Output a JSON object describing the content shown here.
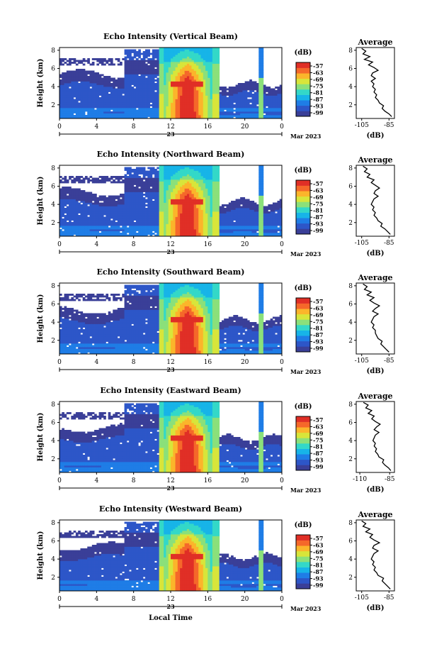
{
  "chart_data": [
    {
      "type": "heatmap",
      "title": "Echo Intensity (Vertical Beam)",
      "ylabel": "Height (km)",
      "yticks": [
        "2",
        "4",
        "6",
        "8"
      ],
      "ylim": [
        0.5,
        8.3
      ],
      "xticks": [
        "0",
        "4",
        "8",
        "12",
        "16",
        "20",
        "0"
      ],
      "xlim": [
        0,
        24
      ],
      "day_label": "23",
      "date_label": "Mar 2023",
      "colorbar": {
        "unit": "(dB)",
        "levels": [
          "-57",
          "-63",
          "-69",
          "-75",
          "-81",
          "-87",
          "-93",
          "-99"
        ]
      },
      "profile": {
        "title": "Average",
        "xlabel": "(dB)",
        "xticks": [
          "-105",
          "-85"
        ],
        "xlim": [
          -109,
          -81
        ],
        "yticks": [
          "2",
          "4",
          "6",
          "8"
        ],
        "ylim": [
          0.5,
          8.3
        ],
        "heights": [
          0.7,
          1.0,
          1.3,
          1.6,
          1.9,
          2.2,
          2.5,
          2.8,
          3.1,
          3.4,
          3.7,
          4.0,
          4.3,
          4.6,
          4.9,
          5.2,
          5.5,
          5.8,
          6.1,
          6.4,
          6.7,
          7.0,
          7.3,
          7.6,
          7.9,
          8.2
        ],
        "values": [
          -83,
          -85,
          -88,
          -90,
          -89,
          -92,
          -93,
          -95,
          -94,
          -96,
          -95,
          -97,
          -96,
          -98,
          -95,
          -98,
          -97,
          -93,
          -96,
          -100,
          -97,
          -103,
          -99,
          -104,
          -102,
          -105
        ]
      }
    },
    {
      "type": "heatmap",
      "title": "Echo Intensity (Northward Beam)",
      "ylabel": "Height (km)",
      "yticks": [
        "2",
        "4",
        "6",
        "8"
      ],
      "ylim": [
        0.5,
        8.3
      ],
      "xticks": [
        "0",
        "4",
        "8",
        "12",
        "16",
        "20",
        "0"
      ],
      "xlim": [
        0,
        24
      ],
      "day_label": "23",
      "date_label": "Mar 2023",
      "colorbar": {
        "unit": "(dB)",
        "levels": [
          "-57",
          "-63",
          "-69",
          "-75",
          "-81",
          "-87",
          "-93",
          "-99"
        ]
      },
      "profile": {
        "title": "Average",
        "xlabel": "(dB)",
        "xticks": [
          "-105",
          "-85"
        ],
        "xlim": [
          -109,
          -81
        ],
        "yticks": [
          "2",
          "4",
          "6",
          "8"
        ],
        "ylim": [
          0.5,
          8.3
        ],
        "heights": [
          0.7,
          1.0,
          1.3,
          1.6,
          1.9,
          2.2,
          2.5,
          2.8,
          3.1,
          3.4,
          3.7,
          4.0,
          4.3,
          4.6,
          4.9,
          5.2,
          5.5,
          5.8,
          6.1,
          6.4,
          6.7,
          7.0,
          7.3,
          7.6,
          7.9,
          8.2
        ],
        "values": [
          -84,
          -86,
          -88,
          -91,
          -90,
          -93,
          -94,
          -96,
          -95,
          -97,
          -96,
          -98,
          -97,
          -96,
          -93,
          -96,
          -95,
          -92,
          -95,
          -98,
          -96,
          -101,
          -99,
          -103,
          -101,
          -104
        ]
      }
    },
    {
      "type": "heatmap",
      "title": "Echo Intensity (Southward Beam)",
      "ylabel": "Height (km)",
      "yticks": [
        "2",
        "4",
        "6",
        "8"
      ],
      "ylim": [
        0.5,
        8.3
      ],
      "xticks": [
        "0",
        "4",
        "8",
        "12",
        "16",
        "20",
        "0"
      ],
      "xlim": [
        0,
        24
      ],
      "day_label": "23",
      "date_label": "Mar 2023",
      "colorbar": {
        "unit": "(dB)",
        "levels": [
          "-57",
          "-63",
          "-69",
          "-75",
          "-81",
          "-87",
          "-93",
          "-99"
        ]
      },
      "profile": {
        "title": "Average",
        "xlabel": "(dB)",
        "xticks": [
          "-105",
          "-85"
        ],
        "xlim": [
          -109,
          -81
        ],
        "yticks": [
          "2",
          "4",
          "6",
          "8"
        ],
        "ylim": [
          0.5,
          8.3
        ],
        "heights": [
          0.7,
          1.0,
          1.3,
          1.6,
          1.9,
          2.2,
          2.5,
          2.8,
          3.1,
          3.4,
          3.7,
          4.0,
          4.3,
          4.6,
          4.9,
          5.2,
          5.5,
          5.8,
          6.1,
          6.4,
          6.7,
          7.0,
          7.3,
          7.6,
          7.9,
          8.2
        ],
        "values": [
          -85,
          -87,
          -89,
          -91,
          -90,
          -93,
          -94,
          -95,
          -95,
          -97,
          -96,
          -98,
          -97,
          -96,
          -93,
          -97,
          -95,
          -92,
          -96,
          -99,
          -96,
          -101,
          -98,
          -103,
          -101,
          -104
        ]
      }
    },
    {
      "type": "heatmap",
      "title": "Echo Intensity (Eastward Beam)",
      "ylabel": "Height (km)",
      "yticks": [
        "2",
        "4",
        "6",
        "8"
      ],
      "ylim": [
        0.5,
        8.3
      ],
      "xticks": [
        "0",
        "4",
        "8",
        "12",
        "16",
        "20",
        "0"
      ],
      "xlim": [
        0,
        24
      ],
      "day_label": "23",
      "date_label": "Mar 2023",
      "colorbar": {
        "unit": "(dB)",
        "levels": [
          "-57",
          "-63",
          "-69",
          "-75",
          "-81",
          "-87",
          "-93",
          "-99"
        ]
      },
      "profile": {
        "title": "Average",
        "xlabel": "(dB)",
        "xticks": [
          "-110",
          "-85"
        ],
        "xlim": [
          -113,
          -81
        ],
        "yticks": [
          "2",
          "4",
          "6",
          "8"
        ],
        "ylim": [
          0.5,
          8.3
        ],
        "heights": [
          0.7,
          1.0,
          1.3,
          1.6,
          1.9,
          2.2,
          2.5,
          2.8,
          3.1,
          3.4,
          3.7,
          4.0,
          4.3,
          4.6,
          4.9,
          5.2,
          5.5,
          5.8,
          6.1,
          6.4,
          6.7,
          7.0,
          7.3,
          7.6,
          7.9,
          8.2
        ],
        "values": [
          -84,
          -86,
          -89,
          -91,
          -90,
          -94,
          -95,
          -97,
          -96,
          -98,
          -97,
          -99,
          -98,
          -97,
          -94,
          -98,
          -96,
          -93,
          -97,
          -100,
          -98,
          -103,
          -100,
          -105,
          -103,
          -107
        ]
      }
    },
    {
      "type": "heatmap",
      "title": "Echo Intensity (Westward Beam)",
      "ylabel": "Height (km)",
      "yticks": [
        "2",
        "4",
        "6",
        "8"
      ],
      "ylim": [
        0.5,
        8.3
      ],
      "xticks": [
        "0",
        "4",
        "8",
        "12",
        "16",
        "20",
        "0"
      ],
      "xlim": [
        0,
        24
      ],
      "day_label": "23",
      "date_label": "Mar 2023",
      "xlabel": "Local Time",
      "colorbar": {
        "unit": "(dB)",
        "levels": [
          "-57",
          "-63",
          "-69",
          "-75",
          "-81",
          "-87",
          "-93",
          "-99"
        ]
      },
      "profile": {
        "title": "Average",
        "xlabel": "(dB)",
        "xticks": [
          "-105",
          "-85"
        ],
        "xlim": [
          -109,
          -81
        ],
        "yticks": [
          "2",
          "4",
          "6",
          "8"
        ],
        "ylim": [
          0.5,
          8.3
        ],
        "heights": [
          0.7,
          1.0,
          1.3,
          1.6,
          1.9,
          2.2,
          2.5,
          2.8,
          3.1,
          3.4,
          3.7,
          4.0,
          4.3,
          4.6,
          4.9,
          5.2,
          5.5,
          5.8,
          6.1,
          6.4,
          6.7,
          7.0,
          7.3,
          7.6,
          7.9,
          8.2
        ],
        "values": [
          -84,
          -86,
          -88,
          -90,
          -89,
          -93,
          -94,
          -96,
          -95,
          -97,
          -96,
          -98,
          -97,
          -96,
          -93,
          -97,
          -96,
          -92,
          -96,
          -99,
          -97,
          -102,
          -99,
          -104,
          -102,
          -105
        ]
      }
    }
  ],
  "colors": {
    "scale": [
      "#3a3f98",
      "#2d56c8",
      "#1f7de6",
      "#17b4e8",
      "#33d8c8",
      "#8be07a",
      "#d8e53a",
      "#fbb52b",
      "#f5682a",
      "#e02f26"
    ],
    "profile_line": "#000000"
  }
}
